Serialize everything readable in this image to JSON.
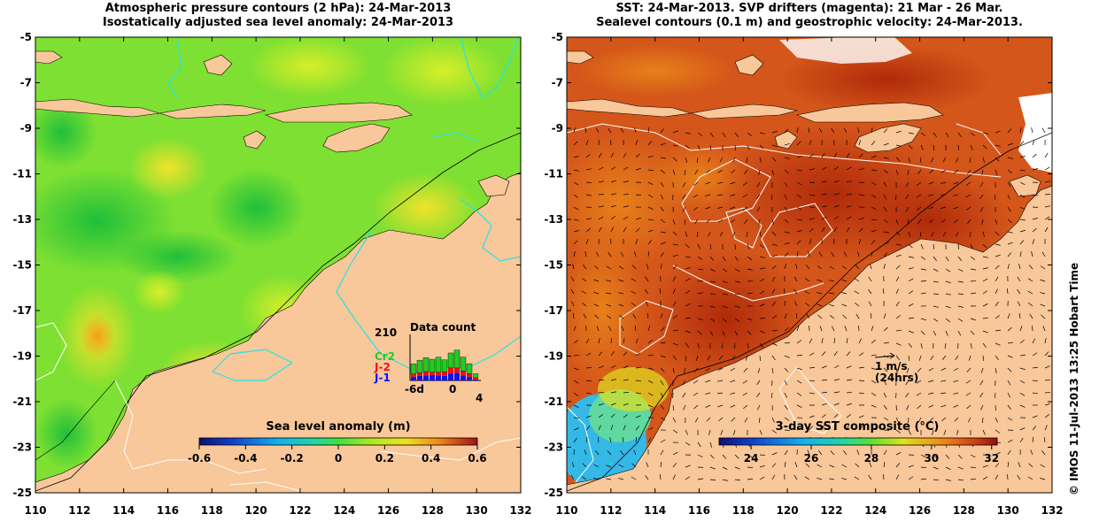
{
  "left_panel": {
    "title_line1": "Atmospheric pressure contours (2 hPa): 24-Mar-2013",
    "title_line2": "Isostatically adjusted sea level anomaly: 24-Mar-2013",
    "colorbar_label": "Sea level anomaly (m)",
    "colorbar_ticks": [
      "-0.6",
      "-0.4",
      "-0.2",
      "0",
      "0.2",
      "0.4",
      "0.6"
    ],
    "inset": {
      "title": "Data count",
      "max_label": "210",
      "legend": [
        {
          "name": "Cr2",
          "color": "#22cc22"
        },
        {
          "name": "J-2",
          "color": "#ee1111"
        },
        {
          "name": "J-1",
          "color": "#1111ee"
        }
      ],
      "x_ticks": [
        "-6d",
        "0",
        "4"
      ]
    }
  },
  "right_panel": {
    "title_line1": "SST: 24-Mar-2013. SVP drifters (magenta): 21 Mar - 26 Mar.",
    "title_line2": "Sealevel contours (0.1 m) and geostrophic velocity: 24-Mar-2013.",
    "colorbar_label": "3-day SST composite (°C)",
    "colorbar_ticks": [
      "24",
      "26",
      "28",
      "30",
      "32"
    ],
    "velocity_scale": {
      "label1": "1 m/s",
      "label2": "(24hrs)"
    }
  },
  "axes": {
    "y_ticks": [
      "-5",
      "-7",
      "-9",
      "-11",
      "-13",
      "-15",
      "-17",
      "-19",
      "-21",
      "-23",
      "-25"
    ],
    "x_ticks": [
      "110",
      "112",
      "114",
      "116",
      "118",
      "120",
      "122",
      "124",
      "126",
      "128",
      "130",
      "132"
    ]
  },
  "credit": "© IMOS 11-Jul-2013 13:25 Hobart Time",
  "colors": {
    "land": "#f8c79a",
    "contour_cyan": "#22e5e5",
    "sst_warm": "#c13d0f",
    "sla_green": "#66dd22"
  }
}
